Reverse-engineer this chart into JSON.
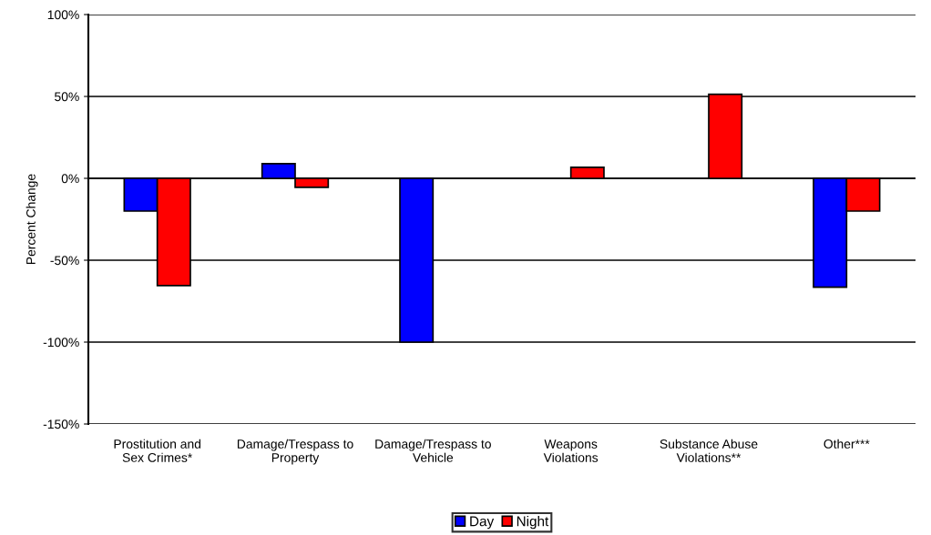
{
  "chart_data": {
    "type": "bar",
    "ylabel": "Percent Change",
    "categories": [
      "Prostitution and\nSex Crimes*",
      "Damage/Trespass to\nProperty",
      "Damage/Trespass to\nVehicle",
      "Weapons\nViolations",
      "Substance Abuse\nViolations**",
      "Other***"
    ],
    "series": [
      {
        "name": "Day",
        "color": "#0000ff",
        "values": [
          -20,
          9,
          -100,
          null,
          null,
          -66.5
        ]
      },
      {
        "name": "Night",
        "color": "#ff0000",
        "values": [
          -65.5,
          -5.5,
          null,
          6.7,
          51.3,
          -20
        ]
      }
    ],
    "ylim": [
      -150,
      100
    ],
    "yticks": [
      {
        "value": -150,
        "label": "-150%"
      },
      {
        "value": -100,
        "label": "-100%"
      },
      {
        "value": -50,
        "label": "-50%"
      },
      {
        "value": 0,
        "label": "0%"
      },
      {
        "value": 50,
        "label": "50%"
      },
      {
        "value": 100,
        "label": "100%"
      }
    ],
    "grid": "y",
    "legend": "bottom"
  }
}
